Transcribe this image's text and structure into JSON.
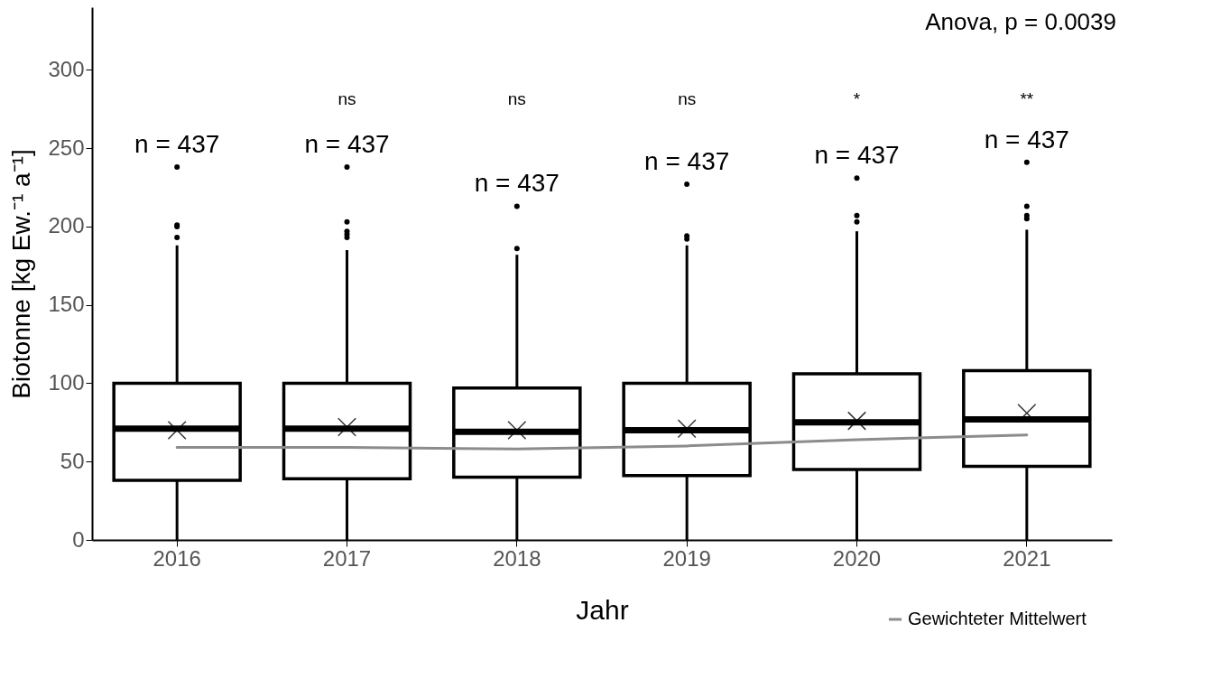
{
  "chart_data": {
    "type": "box",
    "xlabel": "Jahr",
    "ylabel": "Biotonne [kg Ew.⁻¹ a⁻¹]",
    "categories": [
      "2016",
      "2017",
      "2018",
      "2019",
      "2020",
      "2021"
    ],
    "boxes": [
      {
        "low": 0,
        "q1": 38,
        "median": 71,
        "q3": 100,
        "high": 188,
        "mean": 70,
        "outliers": [
          193,
          200,
          201,
          238
        ]
      },
      {
        "low": 0,
        "q1": 39,
        "median": 71,
        "q3": 100,
        "high": 185,
        "mean": 72,
        "outliers": [
          193,
          195,
          197,
          203,
          238
        ]
      },
      {
        "low": 0,
        "q1": 40,
        "median": 69,
        "q3": 97,
        "high": 182,
        "mean": 70,
        "outliers": [
          186,
          213
        ]
      },
      {
        "low": 0,
        "q1": 41,
        "median": 70,
        "q3": 100,
        "high": 188,
        "mean": 71,
        "outliers": [
          192,
          194,
          227
        ]
      },
      {
        "low": 0,
        "q1": 45,
        "median": 75,
        "q3": 106,
        "high": 197,
        "mean": 76,
        "outliers": [
          203,
          207,
          231
        ]
      },
      {
        "low": 0,
        "q1": 47,
        "median": 77,
        "q3": 108,
        "high": 198,
        "mean": 81,
        "outliers": [
          205,
          207,
          213,
          241
        ]
      }
    ],
    "series": [
      {
        "type": "line",
        "name": "Gewichteter Mittelwert",
        "color": "#8c8c8c",
        "values": [
          59,
          59,
          58,
          60,
          64,
          67
        ]
      }
    ],
    "ylim": [
      0,
      340
    ],
    "yticks": [
      0,
      50,
      100,
      150,
      200,
      250,
      300
    ],
    "legend": "bottom right",
    "annotations": [
      "n = 437",
      "n = 437",
      "n = 437",
      "n = 437",
      "n = 437",
      "n = 437",
      "ns",
      "ns",
      "ns",
      "*",
      "**",
      "Anova, p = 0.0039"
    ]
  }
}
